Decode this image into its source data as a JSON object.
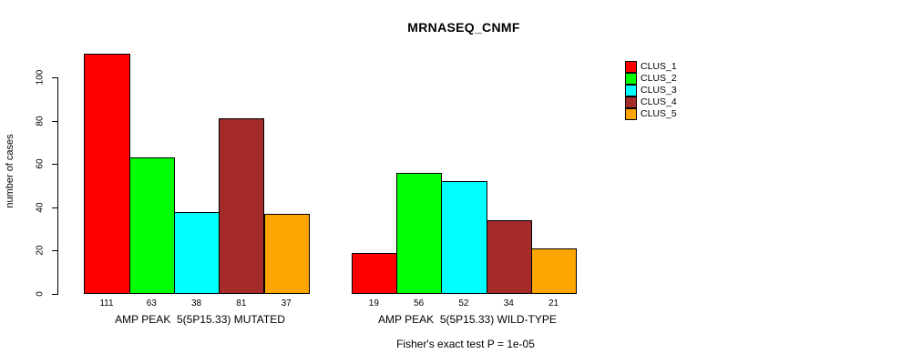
{
  "chart_data": {
    "type": "bar",
    "title": "MRNASEQ_CNMF",
    "ylabel": "number of cases",
    "xlabel": "",
    "annotation": "Fisher's exact test P = 1e-05",
    "grid": false,
    "legend_position": "right",
    "ylim": [
      0,
      111
    ],
    "yticks": [
      0,
      20,
      40,
      60,
      80,
      100
    ],
    "categories": [
      "AMP PEAK  5(5P15.33) MUTATED",
      "AMP PEAK  5(5P15.33) WILD-TYPE"
    ],
    "series": [
      {
        "name": "CLUS_1",
        "color": "#FF0000",
        "values": [
          111,
          19
        ]
      },
      {
        "name": "CLUS_2",
        "color": "#00FF00",
        "values": [
          63,
          56
        ]
      },
      {
        "name": "CLUS_3",
        "color": "#00FFFF",
        "values": [
          38,
          52
        ]
      },
      {
        "name": "CLUS_4",
        "color": "#A52A2A",
        "values": [
          81,
          34
        ]
      },
      {
        "name": "CLUS_5",
        "color": "#FFA500",
        "values": [
          37,
          21
        ]
      }
    ],
    "bar_border_color": "#000000",
    "axis_color": "#000000",
    "background_color": "#FFFFFF"
  }
}
